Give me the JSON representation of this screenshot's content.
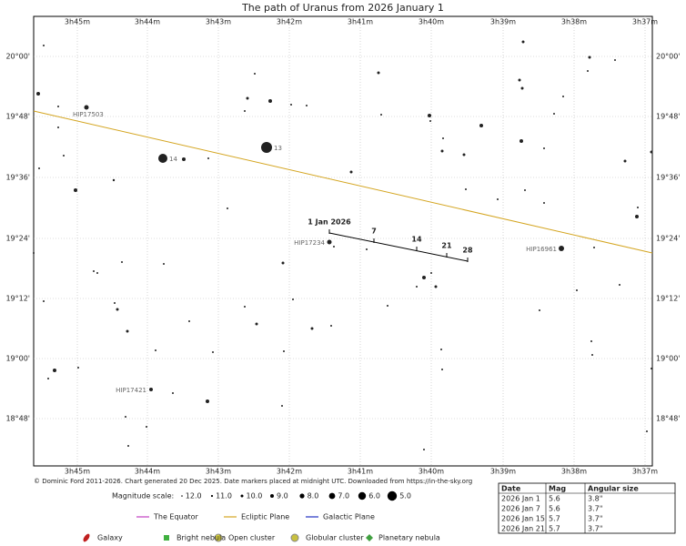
{
  "title": "The path of Uranus from 2026 January 1",
  "ra_labels": [
    "3h45m",
    "3h44m",
    "3h43m",
    "3h42m",
    "3h41m",
    "3h40m",
    "3h39m",
    "3h38m",
    "3h37m"
  ],
  "dec_labels": [
    "20°00'",
    "19°48'",
    "19°36'",
    "19°24'",
    "19°12'",
    "19°00'",
    "18°48'"
  ],
  "path_labels": [
    "1 Jan 2026",
    "7",
    "14",
    "21",
    "28"
  ],
  "star_labels": [
    "HIP17503",
    "14",
    "13",
    "HIP17234",
    "HIP16961",
    "HIP17421"
  ],
  "credit": "© Dominic Ford 2011-2026. Chart generated 20 Dec 2025. Date markers placed at midnight UTC. Downloaded from https://in-the-sky.org",
  "legend": {
    "magnitude_title": "Magnitude scale:",
    "magnitudes": [
      "12.0",
      "11.0",
      "10.0",
      "9.0",
      "8.0",
      "7.0",
      "6.0",
      "5.0"
    ],
    "lines": [
      "The Equator",
      "Ecliptic Plane",
      "Galactic Plane"
    ],
    "objects": [
      "Galaxy",
      "Bright nebula",
      "Open cluster",
      "Globular cluster",
      "Planetary nebula"
    ]
  },
  "table": {
    "header": [
      "Date",
      "Mag",
      "Angular size"
    ],
    "rows": [
      [
        "2026 Jan 1",
        "5.6",
        "3.8\""
      ],
      [
        "2026 Jan 7",
        "5.6",
        "3.7\""
      ],
      [
        "2026 Jan 15",
        "5.7",
        "3.7\""
      ],
      [
        "2026 Jan 21",
        "5.7",
        "3.7\""
      ]
    ]
  }
}
